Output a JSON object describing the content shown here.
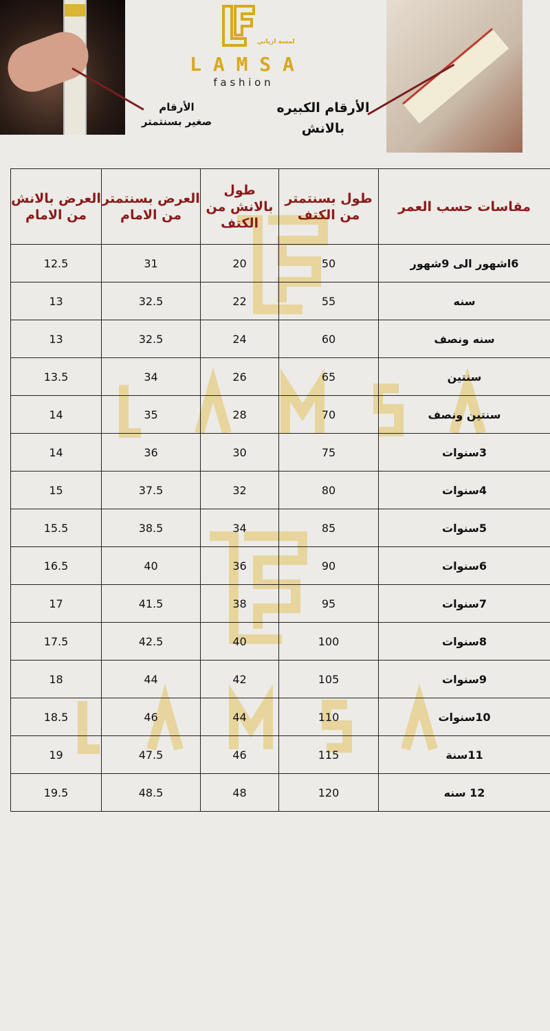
{
  "brand": {
    "logo_text_ar": "لمسة ازياني",
    "name": "L A M S A",
    "tagline": "f a s h i o n"
  },
  "notes": {
    "small_numbers": [
      "الأرقام",
      "صغير بسنتمتر"
    ],
    "big_numbers": [
      "الأرقام الكبيره",
      "بالانش"
    ]
  },
  "colors": {
    "header_text": "#8b1a1a",
    "brand_gold": "#d9a81e",
    "arrow": "#7a1e1e"
  },
  "table": {
    "headers": [
      "العرض بالانش من الامام",
      "العرض بسنتمتر من الامام",
      "طول بالانش من الكتف",
      "طول بسنتمتر من الكتف",
      "مقاسات حسب العمر"
    ],
    "rows": [
      [
        "12.5",
        "31",
        "20",
        "50",
        "6اشهور الى 9شهور"
      ],
      [
        "13",
        "32.5",
        "22",
        "55",
        "سنه"
      ],
      [
        "13",
        "32.5",
        "24",
        "60",
        "سنه ونصف"
      ],
      [
        "13.5",
        "34",
        "26",
        "65",
        "سنتين"
      ],
      [
        "14",
        "35",
        "28",
        "70",
        "سنتين ونصف"
      ],
      [
        "14",
        "36",
        "30",
        "75",
        "3سنوات"
      ],
      [
        "15",
        "37.5",
        "32",
        "80",
        "4سنوات"
      ],
      [
        "15.5",
        "38.5",
        "34",
        "85",
        "5سنوات"
      ],
      [
        "16.5",
        "40",
        "36",
        "90",
        "6سنوات"
      ],
      [
        "17",
        "41.5",
        "38",
        "95",
        "7سنوات"
      ],
      [
        "17.5",
        "42.5",
        "40",
        "100",
        "8سنوات"
      ],
      [
        "18",
        "44",
        "42",
        "105",
        "9سنوات"
      ],
      [
        "18.5",
        "46",
        "44",
        "110",
        "10سنوات"
      ],
      [
        "19",
        "47.5",
        "46",
        "115",
        "11سنة"
      ],
      [
        "19.5",
        "48.5",
        "48",
        "120",
        "12 سنه"
      ]
    ]
  }
}
